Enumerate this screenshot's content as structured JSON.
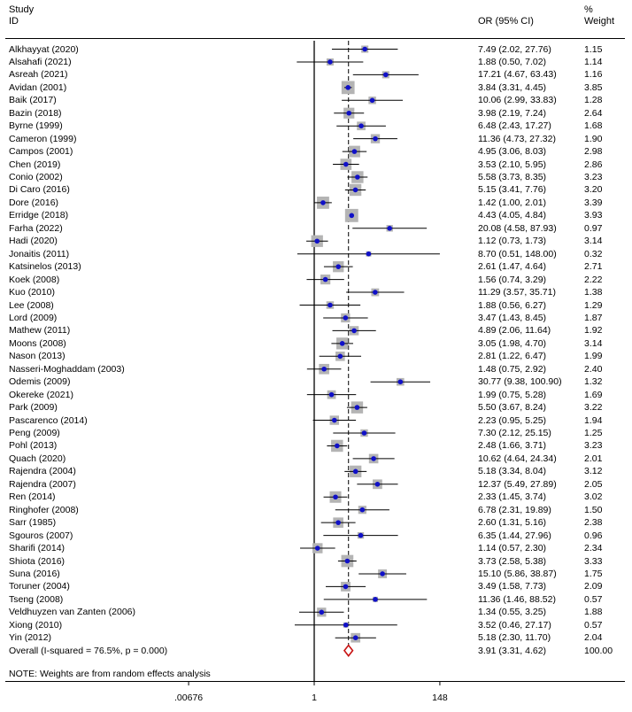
{
  "chart_data": {
    "type": "forest",
    "header": {
      "study_line1": "Study",
      "study_line2": "ID",
      "or_label": "OR (95% CI)",
      "weight_line1": "%",
      "weight_line2": "Weight"
    },
    "x_scale": "log",
    "null_value": 1,
    "overall_effect": 3.91,
    "xticks": [
      {
        "value": 0.00676,
        "label": ".00676"
      },
      {
        "value": 1,
        "label": "1"
      },
      {
        "value": 148,
        "label": "148"
      }
    ],
    "studies": [
      {
        "name": "Alkhayyat (2020)",
        "or": 7.49,
        "lo": 2.02,
        "hi": 27.76,
        "ci_text": "7.49 (2.02, 27.76)",
        "weight": "1.15"
      },
      {
        "name": "Alsahafi (2021)",
        "or": 1.88,
        "lo": 0.5,
        "hi": 7.02,
        "ci_text": "1.88 (0.50, 7.02)",
        "weight": "1.14"
      },
      {
        "name": "Asreah (2021)",
        "or": 17.21,
        "lo": 4.67,
        "hi": 63.43,
        "ci_text": "17.21 (4.67, 63.43)",
        "weight": "1.16"
      },
      {
        "name": "Avidan (2001)",
        "or": 3.84,
        "lo": 3.31,
        "hi": 4.45,
        "ci_text": "3.84 (3.31, 4.45)",
        "weight": "3.85"
      },
      {
        "name": "Baik (2017)",
        "or": 10.06,
        "lo": 2.99,
        "hi": 33.83,
        "ci_text": "10.06 (2.99, 33.83)",
        "weight": "1.28"
      },
      {
        "name": "Bazin (2018)",
        "or": 3.98,
        "lo": 2.19,
        "hi": 7.24,
        "ci_text": "3.98 (2.19, 7.24)",
        "weight": "2.64"
      },
      {
        "name": "Byrne (1999)",
        "or": 6.48,
        "lo": 2.43,
        "hi": 17.27,
        "ci_text": "6.48 (2.43, 17.27)",
        "weight": "1.68"
      },
      {
        "name": "Cameron (1999)",
        "or": 11.36,
        "lo": 4.73,
        "hi": 27.32,
        "ci_text": "11.36 (4.73, 27.32)",
        "weight": "1.90"
      },
      {
        "name": "Campos (2001)",
        "or": 4.95,
        "lo": 3.06,
        "hi": 8.03,
        "ci_text": "4.95 (3.06, 8.03)",
        "weight": "2.98"
      },
      {
        "name": "Chen (2019)",
        "or": 3.53,
        "lo": 2.1,
        "hi": 5.95,
        "ci_text": "3.53 (2.10, 5.95)",
        "weight": "2.86"
      },
      {
        "name": "Conio (2002)",
        "or": 5.58,
        "lo": 3.73,
        "hi": 8.35,
        "ci_text": "5.58 (3.73, 8.35)",
        "weight": "3.23"
      },
      {
        "name": "Di Caro (2016)",
        "or": 5.15,
        "lo": 3.41,
        "hi": 7.76,
        "ci_text": "5.15 (3.41, 7.76)",
        "weight": "3.20"
      },
      {
        "name": "Dore (2016)",
        "or": 1.42,
        "lo": 1.0,
        "hi": 2.01,
        "ci_text": "1.42 (1.00, 2.01)",
        "weight": "3.39"
      },
      {
        "name": "Erridge (2018)",
        "or": 4.43,
        "lo": 4.05,
        "hi": 4.84,
        "ci_text": "4.43 (4.05, 4.84)",
        "weight": "3.93"
      },
      {
        "name": "Farha (2022)",
        "or": 20.08,
        "lo": 4.58,
        "hi": 87.93,
        "ci_text": "20.08 (4.58, 87.93)",
        "weight": "0.97"
      },
      {
        "name": "Hadi (2020)",
        "or": 1.12,
        "lo": 0.73,
        "hi": 1.73,
        "ci_text": "1.12 (0.73, 1.73)",
        "weight": "3.14"
      },
      {
        "name": "Jonaitis (2011)",
        "or": 8.7,
        "lo": 0.51,
        "hi": 148.0,
        "ci_text": "8.70 (0.51, 148.00)",
        "weight": "0.32"
      },
      {
        "name": "Katsinelos (2013)",
        "or": 2.61,
        "lo": 1.47,
        "hi": 4.64,
        "ci_text": "2.61 (1.47, 4.64)",
        "weight": "2.71"
      },
      {
        "name": "Koek (2008)",
        "or": 1.56,
        "lo": 0.74,
        "hi": 3.29,
        "ci_text": "1.56 (0.74, 3.29)",
        "weight": "2.22"
      },
      {
        "name": "Kuo (2010)",
        "or": 11.29,
        "lo": 3.57,
        "hi": 35.71,
        "ci_text": "11.29 (3.57, 35.71)",
        "weight": "1.38"
      },
      {
        "name": "Lee (2008)",
        "or": 1.88,
        "lo": 0.56,
        "hi": 6.27,
        "ci_text": "1.88 (0.56, 6.27)",
        "weight": "1.29"
      },
      {
        "name": "Lord (2009)",
        "or": 3.47,
        "lo": 1.43,
        "hi": 8.45,
        "ci_text": "3.47 (1.43, 8.45)",
        "weight": "1.87"
      },
      {
        "name": "Mathew (2011)",
        "or": 4.89,
        "lo": 2.06,
        "hi": 11.64,
        "ci_text": "4.89 (2.06, 11.64)",
        "weight": "1.92"
      },
      {
        "name": "Moons (2008)",
        "or": 3.05,
        "lo": 1.98,
        "hi": 4.7,
        "ci_text": "3.05 (1.98, 4.70)",
        "weight": "3.14"
      },
      {
        "name": "Nason (2013)",
        "or": 2.81,
        "lo": 1.22,
        "hi": 6.47,
        "ci_text": "2.81 (1.22, 6.47)",
        "weight": "1.99"
      },
      {
        "name": "Nasseri-Moghaddam (2003)",
        "or": 1.48,
        "lo": 0.75,
        "hi": 2.92,
        "ci_text": "1.48 (0.75, 2.92)",
        "weight": "2.40"
      },
      {
        "name": "Odemis (2009)",
        "or": 30.77,
        "lo": 9.38,
        "hi": 100.9,
        "ci_text": "30.77 (9.38, 100.90)",
        "weight": "1.32"
      },
      {
        "name": "Okereke (2021)",
        "or": 1.99,
        "lo": 0.75,
        "hi": 5.28,
        "ci_text": "1.99 (0.75, 5.28)",
        "weight": "1.69"
      },
      {
        "name": "Park (2009)",
        "or": 5.5,
        "lo": 3.67,
        "hi": 8.24,
        "ci_text": "5.50 (3.67, 8.24)",
        "weight": "3.22"
      },
      {
        "name": "Pascarenco (2014)",
        "or": 2.23,
        "lo": 0.95,
        "hi": 5.25,
        "ci_text": "2.23 (0.95, 5.25)",
        "weight": "1.94"
      },
      {
        "name": "Peng (2009)",
        "or": 7.3,
        "lo": 2.12,
        "hi": 25.15,
        "ci_text": "7.30 (2.12, 25.15)",
        "weight": "1.25"
      },
      {
        "name": "Pohl (2013)",
        "or": 2.48,
        "lo": 1.66,
        "hi": 3.71,
        "ci_text": "2.48 (1.66, 3.71)",
        "weight": "3.23"
      },
      {
        "name": "Quach (2020)",
        "or": 10.62,
        "lo": 4.64,
        "hi": 24.34,
        "ci_text": "10.62 (4.64, 24.34)",
        "weight": "2.01"
      },
      {
        "name": "Rajendra (2004)",
        "or": 5.18,
        "lo": 3.34,
        "hi": 8.04,
        "ci_text": "5.18 (3.34, 8.04)",
        "weight": "3.12"
      },
      {
        "name": "Rajendra (2007)",
        "or": 12.37,
        "lo": 5.49,
        "hi": 27.89,
        "ci_text": "12.37 (5.49, 27.89)",
        "weight": "2.05"
      },
      {
        "name": "Ren (2014)",
        "or": 2.33,
        "lo": 1.45,
        "hi": 3.74,
        "ci_text": "2.33 (1.45, 3.74)",
        "weight": "3.02"
      },
      {
        "name": "Ringhofer (2008)",
        "or": 6.78,
        "lo": 2.31,
        "hi": 19.89,
        "ci_text": "6.78 (2.31, 19.89)",
        "weight": "1.50"
      },
      {
        "name": "Sarr (1985)",
        "or": 2.6,
        "lo": 1.31,
        "hi": 5.16,
        "ci_text": "2.60 (1.31, 5.16)",
        "weight": "2.38"
      },
      {
        "name": "Sgouros (2007)",
        "or": 6.35,
        "lo": 1.44,
        "hi": 27.96,
        "ci_text": "6.35 (1.44, 27.96)",
        "weight": "0.96"
      },
      {
        "name": "Sharifi (2014)",
        "or": 1.14,
        "lo": 0.57,
        "hi": 2.3,
        "ci_text": "1.14 (0.57, 2.30)",
        "weight": "2.34"
      },
      {
        "name": "Shiota (2016)",
        "or": 3.73,
        "lo": 2.58,
        "hi": 5.38,
        "ci_text": "3.73 (2.58, 5.38)",
        "weight": "3.33"
      },
      {
        "name": "Suna (2016)",
        "or": 15.1,
        "lo": 5.86,
        "hi": 38.87,
        "ci_text": "15.10 (5.86, 38.87)",
        "weight": "1.75"
      },
      {
        "name": "Toruner (2004)",
        "or": 3.49,
        "lo": 1.58,
        "hi": 7.73,
        "ci_text": "3.49 (1.58, 7.73)",
        "weight": "2.09"
      },
      {
        "name": "Tseng (2008)",
        "or": 11.36,
        "lo": 1.46,
        "hi": 88.52,
        "ci_text": "11.36 (1.46, 88.52)",
        "weight": "0.57"
      },
      {
        "name": "Veldhuyzen van Zanten (2006)",
        "or": 1.34,
        "lo": 0.55,
        "hi": 3.25,
        "ci_text": "1.34 (0.55, 3.25)",
        "weight": "1.88"
      },
      {
        "name": "Xiong (2010)",
        "or": 3.52,
        "lo": 0.46,
        "hi": 27.17,
        "ci_text": "3.52 (0.46, 27.17)",
        "weight": "0.57"
      },
      {
        "name": "Yin (2012)",
        "or": 5.18,
        "lo": 2.3,
        "hi": 11.7,
        "ci_text": "5.18 (2.30, 11.70)",
        "weight": "2.04"
      }
    ],
    "overall": {
      "label": "Overall  (I-squared = 76.5%, p = 0.000)",
      "or": 3.91,
      "lo": 3.31,
      "hi": 4.62,
      "ci_text": "3.91 (3.31, 4.62)",
      "weight": "100.00"
    },
    "note": "NOTE: Weights are from random effects analysis",
    "colors": {
      "point": "#1010c8",
      "box": "#b4b4b4",
      "diamond": "#c81414",
      "line": "#000000"
    }
  }
}
